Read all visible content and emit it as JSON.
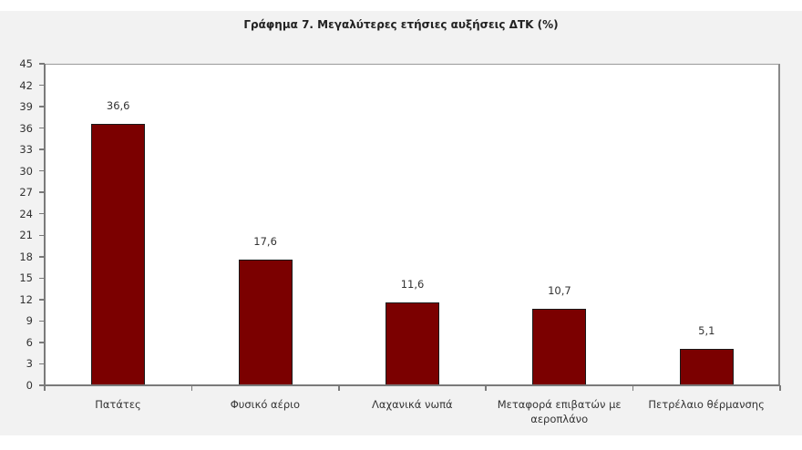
{
  "chart_data": {
    "type": "bar",
    "title": "Γράφημα 7. Μεγαλύτερες ετήσιες αυξήσεις ΔΤΚ (%)",
    "categories": [
      "Πατάτες",
      "Φυσικό αέριο",
      "Λαχανικά νωπά",
      "Μεταφορά επιβατών με αεροπλάνο",
      "Πετρέλαιο θέρμανσης"
    ],
    "category_lines": [
      [
        "Πατάτες"
      ],
      [
        "Φυσικό αέριο"
      ],
      [
        "Λαχανικά νωπά"
      ],
      [
        "Μεταφορά επιβατών με",
        "αεροπλάνο"
      ],
      [
        "Πετρέλαιο θέρμανσης"
      ]
    ],
    "values": [
      36.6,
      17.6,
      11.6,
      10.7,
      5.1
    ],
    "value_labels": [
      "36,6",
      "17,6",
      "11,6",
      "10,7",
      "5,1"
    ],
    "xlabel": "",
    "ylabel": "",
    "ylim": [
      0,
      45
    ],
    "yticks": [
      "0",
      "3",
      "6",
      "9",
      "12",
      "15",
      "18",
      "21",
      "24",
      "27",
      "30",
      "33",
      "36",
      "39",
      "42",
      "45"
    ],
    "grid": false,
    "legend": "none",
    "bar_color": "#7b0000",
    "background_color": "#f2f2f2"
  }
}
